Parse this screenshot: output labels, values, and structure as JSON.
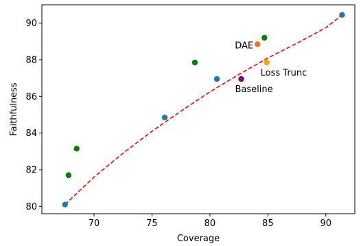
{
  "chart_data": {
    "type": "scatter",
    "xlabel": "Coverage",
    "ylabel": "Faithfulness",
    "xlim": [
      65.5,
      92.5
    ],
    "ylim": [
      79.6,
      91.0
    ],
    "xticks": [
      70,
      75,
      80,
      85,
      90
    ],
    "yticks": [
      80,
      82,
      84,
      86,
      88,
      90
    ],
    "grid": false,
    "colors": {
      "blue": "#1f77b4",
      "green": "#008000",
      "orange_dae": "#e07a2a",
      "orange_loss": "#ffa500",
      "purple": "#800080",
      "fit_line": "#ff0000"
    },
    "series": [
      {
        "color": "#1f77b4",
        "points": [
          {
            "x": 67.5,
            "y": 80.1
          },
          {
            "x": 76.1,
            "y": 84.85
          },
          {
            "x": 80.6,
            "y": 86.95
          },
          {
            "x": 91.4,
            "y": 90.45
          }
        ]
      },
      {
        "color": "#008000",
        "points": [
          {
            "x": 67.8,
            "y": 81.7
          },
          {
            "x": 68.5,
            "y": 83.15
          },
          {
            "x": 78.7,
            "y": 87.85
          },
          {
            "x": 84.7,
            "y": 89.2
          }
        ]
      },
      {
        "color": "#e07a2a",
        "points": [
          {
            "x": 84.1,
            "y": 88.85,
            "label": "DAE"
          }
        ]
      },
      {
        "color": "#ffa500",
        "points": [
          {
            "x": 84.9,
            "y": 87.85,
            "label": "Loss Trunc"
          }
        ]
      },
      {
        "color": "#800080",
        "points": [
          {
            "x": 82.7,
            "y": 86.95,
            "label": "Baseline"
          }
        ]
      }
    ],
    "fit_line": {
      "style": "dashed",
      "color": "#ff0000",
      "points": [
        {
          "x": 67.5,
          "y": 80.1
        },
        {
          "x": 70.0,
          "y": 81.6
        },
        {
          "x": 72.5,
          "y": 82.9
        },
        {
          "x": 75.0,
          "y": 84.1
        },
        {
          "x": 77.5,
          "y": 85.2
        },
        {
          "x": 80.0,
          "y": 86.25
        },
        {
          "x": 82.5,
          "y": 87.2
        },
        {
          "x": 85.0,
          "y": 88.1
        },
        {
          "x": 87.5,
          "y": 88.9
        },
        {
          "x": 90.0,
          "y": 89.75
        },
        {
          "x": 91.4,
          "y": 90.45
        }
      ]
    }
  }
}
